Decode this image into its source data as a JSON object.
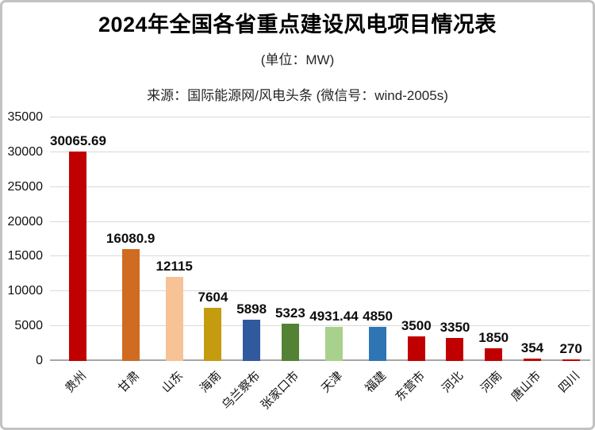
{
  "header": {
    "title": "2024年全国各省重点建设风电项目情况表",
    "subtitle": "(单位：MW)",
    "source": "来源：国际能源网/风电头条 (微信号：wind-2005s)"
  },
  "chart_data": {
    "type": "bar",
    "title": "2024年全国各省重点建设风电项目情况表",
    "unit_label": "(单位：MW)",
    "source": "来源：国际能源网/风电头条 (微信号：wind-2005s)",
    "categories": [
      "贵州",
      "甘肃",
      "山东",
      "海南",
      "乌兰察布",
      "张家口市",
      "天津",
      "福建",
      "东营市",
      "河北",
      "河南",
      "唐山市",
      "四川"
    ],
    "values": [
      30065.69,
      16080.9,
      12115,
      7604,
      5898,
      5323,
      4931.44,
      4850,
      3500,
      3350,
      1850,
      354,
      270
    ],
    "value_labels": [
      "30065.69",
      "16080.9",
      "12115",
      "7604",
      "5898",
      "5323",
      "4931.44",
      "4850",
      "3500",
      "3350",
      "1850",
      "354",
      "270"
    ],
    "bar_colors": [
      "#c00000",
      "#d06b22",
      "#f6c296",
      "#c59b10",
      "#315a9e",
      "#548235",
      "#a9d18e",
      "#2e75b6",
      "#c00000",
      "#c00000",
      "#c00000",
      "#c00000",
      "#c00000"
    ],
    "xlabel": "",
    "ylabel": "",
    "ylim": [
      0,
      35000
    ],
    "yticks": [
      0,
      5000,
      10000,
      15000,
      20000,
      25000,
      30000,
      35000
    ],
    "grid": "horizontal",
    "legend": "none",
    "colors": {
      "gridline": "#d9d9d9",
      "baseline": "#a6a6a6",
      "text": "#111111",
      "background": "#ffffff"
    }
  }
}
